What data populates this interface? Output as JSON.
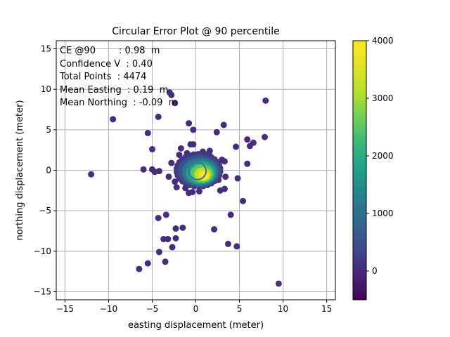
{
  "chart_data": {
    "type": "scatter",
    "title": "Circular Error Plot @ 90 percentile",
    "xlabel": "easting displacement (meter)",
    "ylabel": "northing displacement (meter)",
    "xlim": [
      -16,
      16
    ],
    "ylim": [
      -16,
      16
    ],
    "xticks": [
      -15,
      -10,
      -5,
      0,
      5,
      10,
      15
    ],
    "yticks": [
      -15,
      -10,
      -5,
      0,
      5,
      10,
      15
    ],
    "grid": true,
    "annotations": [
      "CE @90        : 0.98  m",
      "Confidence V  : 0.40",
      "Total Points  : 4474",
      "Mean Easting  : 0.19  m",
      "Mean Northing  : -0.09  m"
    ],
    "circle": {
      "center": [
        0.19,
        -0.09
      ],
      "radius": 0.98,
      "color": "#3a6fa0"
    },
    "colorbar": {
      "range": [
        -500,
        4000
      ],
      "ticks": [
        0,
        1000,
        2000,
        3000,
        4000
      ],
      "colormap": "viridis"
    },
    "outliers": [
      [
        -12.0,
        -0.5,
        0
      ],
      [
        -9.5,
        6.3,
        0
      ],
      [
        -6.5,
        -12.2,
        0
      ],
      [
        -6.0,
        0.1,
        0
      ],
      [
        -5.5,
        4.6,
        0
      ],
      [
        -5.5,
        -11.5,
        0
      ],
      [
        -5.0,
        2.6,
        0
      ],
      [
        -5.0,
        0.1,
        0
      ],
      [
        -4.7,
        -0.2,
        0
      ],
      [
        -4.3,
        6.6,
        0
      ],
      [
        -4.3,
        -5.9,
        0
      ],
      [
        -4.2,
        -10.1,
        0
      ],
      [
        -4.2,
        -0.1,
        0
      ],
      [
        -3.7,
        -8.5,
        0
      ],
      [
        -3.5,
        -11.3,
        0
      ],
      [
        -3.4,
        -5.5,
        0
      ],
      [
        -3.2,
        -8.5,
        0
      ],
      [
        -3.1,
        -0.8,
        0
      ],
      [
        -3.0,
        9.6,
        0
      ],
      [
        -2.8,
        9.3,
        0
      ],
      [
        -2.8,
        0.9,
        0
      ],
      [
        -2.7,
        -9.5,
        0
      ],
      [
        -2.4,
        8.3,
        0
      ],
      [
        -2.3,
        -7.2,
        0
      ],
      [
        -2.3,
        -8.4,
        0
      ],
      [
        -2.2,
        -2.1,
        0
      ],
      [
        -1.7,
        2.7,
        0
      ],
      [
        -1.5,
        -7.1,
        0
      ],
      [
        -0.8,
        5.8,
        0
      ],
      [
        -0.6,
        3.2,
        0
      ],
      [
        -0.3,
        5.0,
        0
      ],
      [
        -0.3,
        3.2,
        0
      ],
      [
        1.6,
        2.4,
        0
      ],
      [
        2.1,
        -7.3,
        0
      ],
      [
        2.4,
        4.7,
        0
      ],
      [
        2.8,
        -2.5,
        0
      ],
      [
        3.2,
        5.6,
        0
      ],
      [
        3.0,
        1.3,
        0
      ],
      [
        3.3,
        1.1,
        0
      ],
      [
        3.4,
        -0.8,
        0
      ],
      [
        3.3,
        -2.3,
        0
      ],
      [
        3.7,
        -9.1,
        0
      ],
      [
        4.0,
        -5.5,
        0
      ],
      [
        4.6,
        2.9,
        0
      ],
      [
        4.7,
        -9.4,
        0
      ],
      [
        4.8,
        -1.0,
        0
      ],
      [
        5.4,
        -3.8,
        0
      ],
      [
        5.9,
        3.8,
        0
      ],
      [
        5.9,
        0.8,
        0
      ],
      [
        6.2,
        3.0,
        0
      ],
      [
        6.6,
        3.4,
        0
      ],
      [
        7.9,
        4.1,
        0
      ],
      [
        8.0,
        8.6,
        0
      ],
      [
        9.5,
        -14.0,
        0
      ],
      [
        -0.8,
        -2.8,
        0
      ],
      [
        -1.2,
        -2.2,
        0
      ],
      [
        -0.4,
        -2.7,
        0
      ],
      [
        0.4,
        -2.6,
        0
      ],
      [
        -1.9,
        1.9,
        0
      ],
      [
        -1.0,
        2.1,
        0
      ],
      [
        0.8,
        2.3,
        0
      ],
      [
        1.5,
        2.1,
        0
      ],
      [
        2.6,
        -1.2,
        0
      ],
      [
        -2.4,
        -1.4,
        0
      ]
    ]
  }
}
